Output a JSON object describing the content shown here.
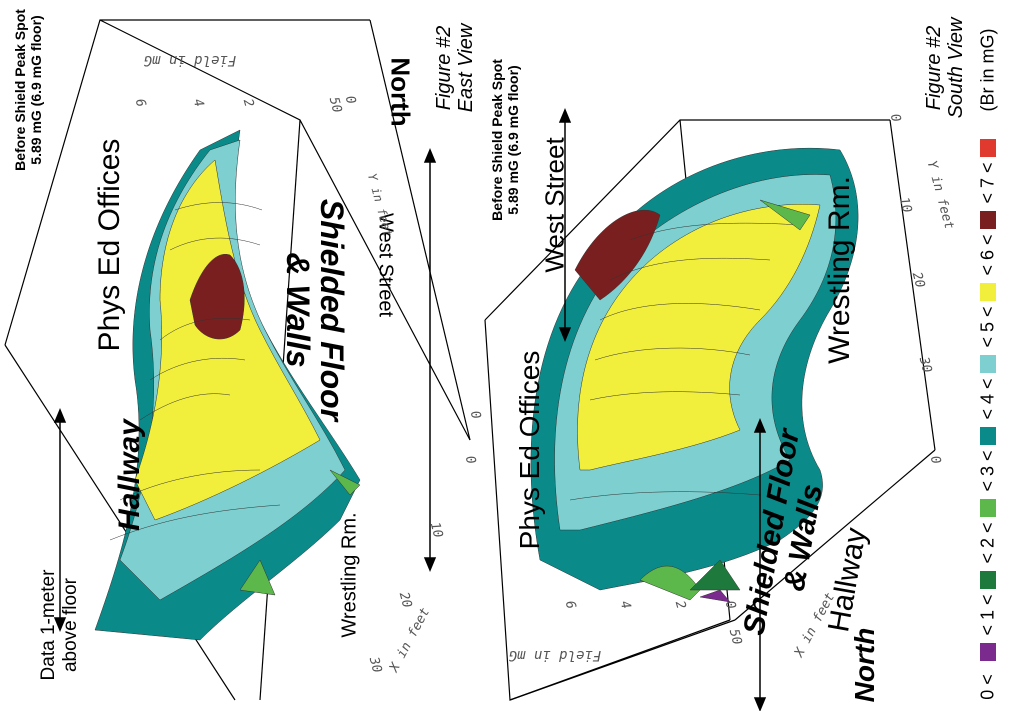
{
  "east_view": {
    "figure": "Figure #2",
    "view": "East View",
    "peak_label_1": "Before Shield Peak Spot",
    "peak_label_2": "5.89 mG (6.9 mG floor)",
    "data_note_1": "Data 1-meter",
    "data_note_2": "above floor",
    "hallway": "Hallway",
    "phys_ed": "Phys Ed Offices",
    "shielded_1": "Shielded Floor",
    "shielded_2": "& Walls",
    "west_street": "West Street",
    "wrestling": "Wrestling Rm.",
    "north": "North",
    "field_axis": "Field in mG",
    "x_axis": "X in feet",
    "y_axis": "Y in feet",
    "z_ticks": [
      "0",
      "2",
      "4",
      "6"
    ],
    "y_ticks": [
      "0",
      "10",
      "20",
      "30"
    ],
    "x_ticks": [
      "0",
      "50"
    ]
  },
  "south_view": {
    "figure": "Figure #2",
    "view": "South View",
    "peak_label_1": "Before Shield Peak Spot",
    "peak_label_2": "5.89 mG (6.9 mG floor)",
    "west_street": "West Street",
    "phys_ed": "Phys Ed Offices",
    "wrestling": "Wrestling Rm.",
    "shielded_1": "Shielded Floor",
    "shielded_2": "& Walls",
    "hallway": "Hallway",
    "north": "North",
    "field_axis": "Field in mG",
    "x_axis": "X in feet",
    "y_axis": "Y in feet",
    "z_ticks": [
      "0",
      "2",
      "4",
      "6"
    ],
    "y_ticks": [
      "0",
      "10",
      "20",
      "30"
    ],
    "x_ticks": [
      "0",
      "50"
    ]
  },
  "legend": {
    "title": "(Br in mG)",
    "items": [
      {
        "label": "0 <",
        "color": "#7b2a8e"
      },
      {
        "label": "< 1 <",
        "color": "#1e7a3c"
      },
      {
        "label": "< 2 <",
        "color": "#5cb84a"
      },
      {
        "label": "< 3 <",
        "color": "#0b8a8a"
      },
      {
        "label": "< 4 <",
        "color": "#7ecfcf"
      },
      {
        "label": "< 5 <",
        "color": "#f2ef3c"
      },
      {
        "label": "< 6 <",
        "color": "#7a1f1f"
      },
      {
        "label": "< 7 <",
        "color": "#e03a2e"
      }
    ]
  }
}
